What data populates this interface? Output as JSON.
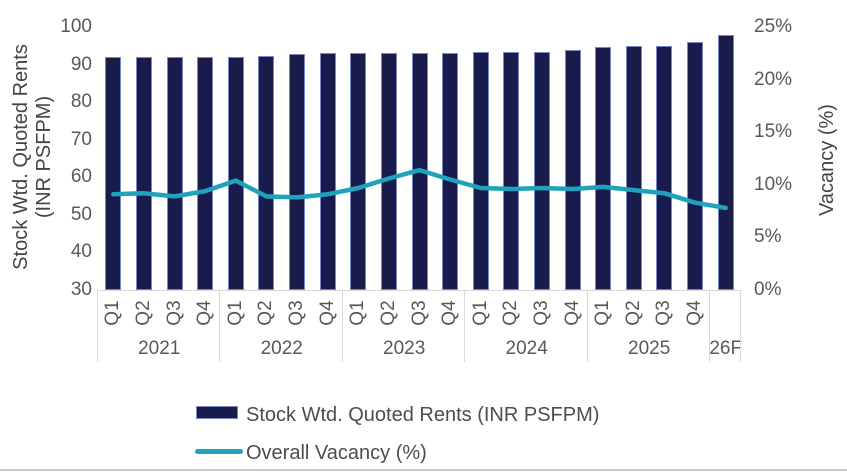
{
  "chart_data": {
    "type": "combo-bar-line",
    "groups": [
      {
        "year": "2021",
        "quarters": [
          "Q1",
          "Q2",
          "Q3",
          "Q4"
        ]
      },
      {
        "year": "2022",
        "quarters": [
          "Q1",
          "Q2",
          "Q3",
          "Q4"
        ]
      },
      {
        "year": "2023",
        "quarters": [
          "Q1",
          "Q2",
          "Q3",
          "Q4"
        ]
      },
      {
        "year": "2024",
        "quarters": [
          "Q1",
          "Q2",
          "Q3",
          "Q4"
        ]
      },
      {
        "year": "2025",
        "quarters": [
          "Q1",
          "Q2",
          "Q3",
          "Q4"
        ]
      },
      {
        "year": "26F",
        "quarters": [
          ""
        ]
      }
    ],
    "series": [
      {
        "name": "Stock Wtd. Quoted Rents (INR PSFPM)",
        "type": "bar",
        "axis": "left",
        "color": "#191B4A",
        "values": [
          92,
          92,
          92,
          92,
          92,
          92.4,
          92.7,
          93,
          93,
          93,
          93,
          93.2,
          93.4,
          93.4,
          93.4,
          94,
          94.7,
          95,
          95,
          96,
          98
        ]
      },
      {
        "name": "Overall Vacancy (%)",
        "type": "line",
        "axis": "right",
        "color": "#1FA3BC",
        "values": [
          9.1,
          9.2,
          8.9,
          9.4,
          10.4,
          8.9,
          8.8,
          9.1,
          9.7,
          10.6,
          11.4,
          10.5,
          9.7,
          9.6,
          9.7,
          9.6,
          9.8,
          9.5,
          9.2,
          8.3,
          7.8
        ]
      }
    ],
    "left_axis": {
      "label_line1": "Stock Wtd. Quoted Rents",
      "label_line2": "(INR PSFPM)",
      "min": 30,
      "max": 100,
      "ticks": [
        100,
        90,
        80,
        70,
        60,
        50,
        40,
        30
      ]
    },
    "right_axis": {
      "label": "Vacancy (%)",
      "min": 0,
      "max": 25,
      "ticks": [
        "25%",
        "20%",
        "15%",
        "10%",
        "5%",
        "0%"
      ]
    }
  },
  "legend": {
    "items": [
      {
        "label": "Stock Wtd. Quoted Rents (INR PSFPM)",
        "swatch": "bar",
        "color": "#191B4A"
      },
      {
        "label": "Overall Vacancy (%)",
        "swatch": "line",
        "color": "#1FA3BC"
      }
    ]
  }
}
